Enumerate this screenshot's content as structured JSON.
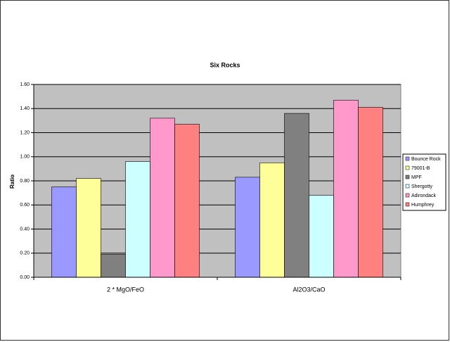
{
  "chart_data": {
    "type": "bar",
    "title": "Six Rocks",
    "y_label": "Ratio",
    "categories": [
      "2 * MgO/FeO",
      "Al2O3/CaO"
    ],
    "series": [
      {
        "name": "Bounce Rock",
        "color": "#9999ff",
        "values": [
          0.75,
          0.83
        ]
      },
      {
        "name": "79001-B",
        "color": "#ffff99",
        "values": [
          0.82,
          0.95
        ]
      },
      {
        "name": "MPF",
        "color": "#808080",
        "values": [
          0.19,
          1.36
        ]
      },
      {
        "name": "Shergotty",
        "color": "#ccffff",
        "values": [
          0.96,
          0.68
        ]
      },
      {
        "name": "Adirondack",
        "color": "#ff99cc",
        "values": [
          1.32,
          1.47
        ]
      },
      {
        "name": "Humphrey",
        "color": "#ff8080",
        "values": [
          1.27,
          1.41
        ]
      }
    ],
    "ylim": [
      0,
      1.6
    ],
    "yticks": [
      {
        "value": 0,
        "label": "0.00"
      },
      {
        "value": 0.2,
        "label": "0.20"
      },
      {
        "value": 0.4,
        "label": "0.40"
      },
      {
        "value": 0.6,
        "label": "0.60"
      },
      {
        "value": 0.8,
        "label": "0.80"
      },
      {
        "value": 1,
        "label": "1.00"
      },
      {
        "value": 1.2,
        "label": "1.20"
      },
      {
        "value": 1.4,
        "label": "1.40"
      },
      {
        "value": 1.6,
        "label": "1.60"
      }
    ],
    "grid": true,
    "legend": "right",
    "plot_background": "#c0c0c0"
  }
}
